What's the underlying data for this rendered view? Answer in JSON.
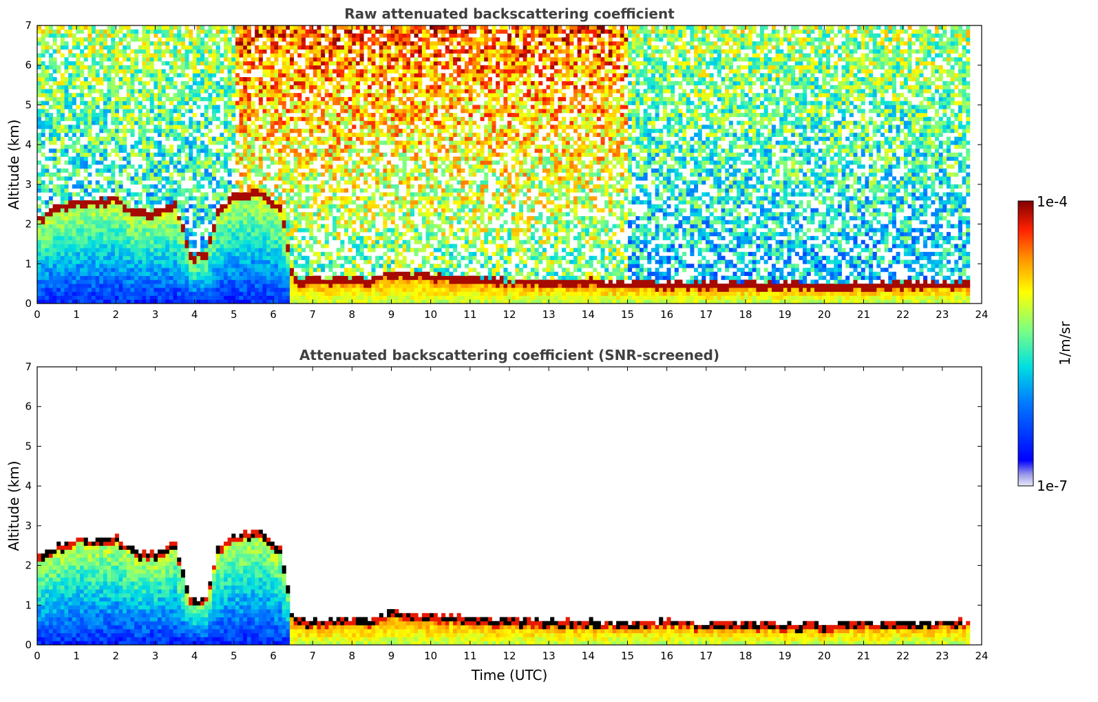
{
  "chart_data": [
    {
      "type": "heatmap",
      "title": "Raw attenuated backscattering coefficient",
      "xlabel": "",
      "ylabel": "Altitude (km)",
      "xlim": [
        0,
        24
      ],
      "ylim": [
        0,
        7
      ],
      "xticks": [
        0,
        1,
        2,
        3,
        4,
        5,
        6,
        7,
        8,
        9,
        10,
        11,
        12,
        13,
        14,
        15,
        16,
        17,
        18,
        19,
        20,
        21,
        22,
        23,
        24
      ],
      "yticks": [
        0,
        1,
        2,
        3,
        4,
        5,
        6,
        7
      ],
      "data_end_time": 23.7,
      "cloud_layer_top_km": [
        [
          0.0,
          2.05
        ],
        [
          0.5,
          2.3
        ],
        [
          1.0,
          2.5
        ],
        [
          1.5,
          2.45
        ],
        [
          2.0,
          2.55
        ],
        [
          2.5,
          2.2
        ],
        [
          3.0,
          2.15
        ],
        [
          3.5,
          2.45
        ],
        [
          3.9,
          1.1
        ],
        [
          4.3,
          1.2
        ],
        [
          4.6,
          2.3
        ],
        [
          5.0,
          2.6
        ],
        [
          5.6,
          2.75
        ],
        [
          6.2,
          2.3
        ],
        [
          6.5,
          0.5
        ],
        [
          7.5,
          0.5
        ],
        [
          8.5,
          0.5
        ],
        [
          9.0,
          0.7
        ],
        [
          10.0,
          0.6
        ],
        [
          12.0,
          0.45
        ],
        [
          14.0,
          0.45
        ],
        [
          16.0,
          0.4
        ],
        [
          18.0,
          0.4
        ],
        [
          20.0,
          0.35
        ],
        [
          22.0,
          0.4
        ],
        [
          23.7,
          0.4
        ]
      ],
      "noise_above": true
    },
    {
      "type": "heatmap",
      "title": "Attenuated backscattering coefficient (SNR-screened)",
      "xlabel": "Time (UTC)",
      "ylabel": "Altitude (km)",
      "xlim": [
        0,
        24
      ],
      "ylim": [
        0,
        7
      ],
      "xticks": [
        0,
        1,
        2,
        3,
        4,
        5,
        6,
        7,
        8,
        9,
        10,
        11,
        12,
        13,
        14,
        15,
        16,
        17,
        18,
        19,
        20,
        21,
        22,
        23,
        24
      ],
      "yticks": [
        0,
        1,
        2,
        3,
        4,
        5,
        6,
        7
      ],
      "data_end_time": 23.7,
      "cloud_layer_top_km": [
        [
          0.0,
          2.1
        ],
        [
          0.5,
          2.35
        ],
        [
          1.0,
          2.55
        ],
        [
          1.5,
          2.5
        ],
        [
          2.0,
          2.6
        ],
        [
          2.5,
          2.2
        ],
        [
          3.0,
          2.15
        ],
        [
          3.5,
          2.45
        ],
        [
          3.9,
          1.0
        ],
        [
          4.3,
          1.1
        ],
        [
          4.6,
          2.3
        ],
        [
          5.0,
          2.6
        ],
        [
          5.6,
          2.75
        ],
        [
          6.2,
          2.3
        ],
        [
          6.5,
          0.5
        ],
        [
          7.5,
          0.5
        ],
        [
          8.5,
          0.5
        ],
        [
          9.0,
          0.7
        ],
        [
          10.0,
          0.6
        ],
        [
          12.0,
          0.5
        ],
        [
          14.0,
          0.45
        ],
        [
          16.0,
          0.45
        ],
        [
          18.0,
          0.4
        ],
        [
          20.0,
          0.4
        ],
        [
          22.0,
          0.45
        ],
        [
          23.7,
          0.45
        ]
      ],
      "noise_above": false
    }
  ],
  "colorbar": {
    "min_label": "1e-7",
    "max_label": "1e-4",
    "units": "1/m/sr",
    "colormap": "jet"
  }
}
